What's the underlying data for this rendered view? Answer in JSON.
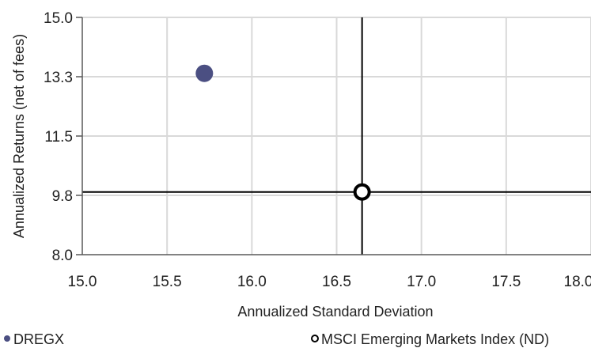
{
  "chart_data": {
    "type": "scatter",
    "xlabel": "Annualized Standard Deviation",
    "ylabel": "Annualized Returns (net of fees)",
    "xlim": [
      15.0,
      18.0
    ],
    "ylim": [
      8.0,
      15.0
    ],
    "x_ticks": [
      "15.0",
      "15.5",
      "16.0",
      "16.5",
      "17.0",
      "17.5",
      "18.0"
    ],
    "y_ticks": [
      "15.0",
      "13.3",
      "11.5",
      "9.8",
      "8.0"
    ],
    "x_tick_values": [
      15.0,
      15.5,
      16.0,
      16.5,
      17.0,
      17.5,
      18.0
    ],
    "y_tick_values": [
      15.0,
      13.25,
      11.5,
      9.75,
      8.0
    ],
    "grid": true,
    "legend_position": "bottom",
    "series": [
      {
        "name": "DREGX",
        "x": 15.72,
        "y": 13.35,
        "marker": "filled-circle",
        "color": "#4b4f82"
      },
      {
        "name": "MSCI Emerging Markets Index (ND)",
        "x": 16.65,
        "y": 9.85,
        "marker": "hollow-circle",
        "color": "#000000"
      }
    ],
    "reference_lines": {
      "vertical_at_x": 16.65,
      "horizontal_at_y": 9.85,
      "color": "#000000"
    }
  }
}
